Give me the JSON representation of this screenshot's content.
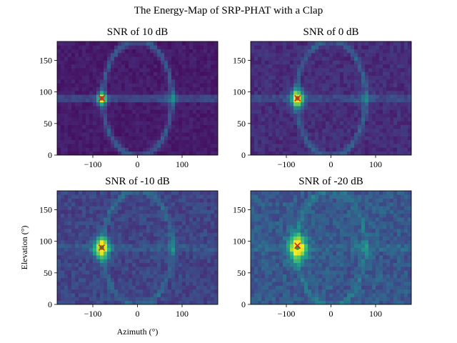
{
  "figure": {
    "title": "The Energy-Map of SRP-PHAT with a Clap",
    "xlabel": "Azimuth (°)",
    "ylabel": "Elevation (°)"
  },
  "chart_data": [
    {
      "type": "heatmap",
      "title": "SNR of 10 dB",
      "xlim": [
        -180,
        180
      ],
      "ylim": [
        0,
        180
      ],
      "xticks": [
        -100,
        0,
        100
      ],
      "yticks": [
        0,
        50,
        100,
        150
      ],
      "peak": {
        "x": -80,
        "y": 90
      },
      "estimate": {
        "x": -80,
        "y": 90
      },
      "colormap": "viridis"
    },
    {
      "type": "heatmap",
      "title": "SNR of 0 dB",
      "xlim": [
        -180,
        180
      ],
      "ylim": [
        0,
        180
      ],
      "xticks": [
        -100,
        0,
        100
      ],
      "yticks": [
        0,
        50,
        100,
        150
      ],
      "peak": {
        "x": -75,
        "y": 90
      },
      "estimate": {
        "x": -75,
        "y": 90
      },
      "colormap": "viridis"
    },
    {
      "type": "heatmap",
      "title": "SNR of -10 dB",
      "xlim": [
        -180,
        180
      ],
      "ylim": [
        0,
        180
      ],
      "xticks": [
        -100,
        0,
        100
      ],
      "yticks": [
        0,
        50,
        100,
        150
      ],
      "peak": {
        "x": -80,
        "y": 90
      },
      "estimate": {
        "x": -80,
        "y": 90
      },
      "colormap": "viridis"
    },
    {
      "type": "heatmap",
      "title": "SNR of -20 dB",
      "xlim": [
        -180,
        180
      ],
      "ylim": [
        0,
        180
      ],
      "xticks": [
        -100,
        0,
        100
      ],
      "yticks": [
        0,
        50,
        100,
        150
      ],
      "peak": {
        "x": -75,
        "y": 90
      },
      "estimate": {
        "x": -75,
        "y": 93
      },
      "colormap": "viridis"
    }
  ]
}
